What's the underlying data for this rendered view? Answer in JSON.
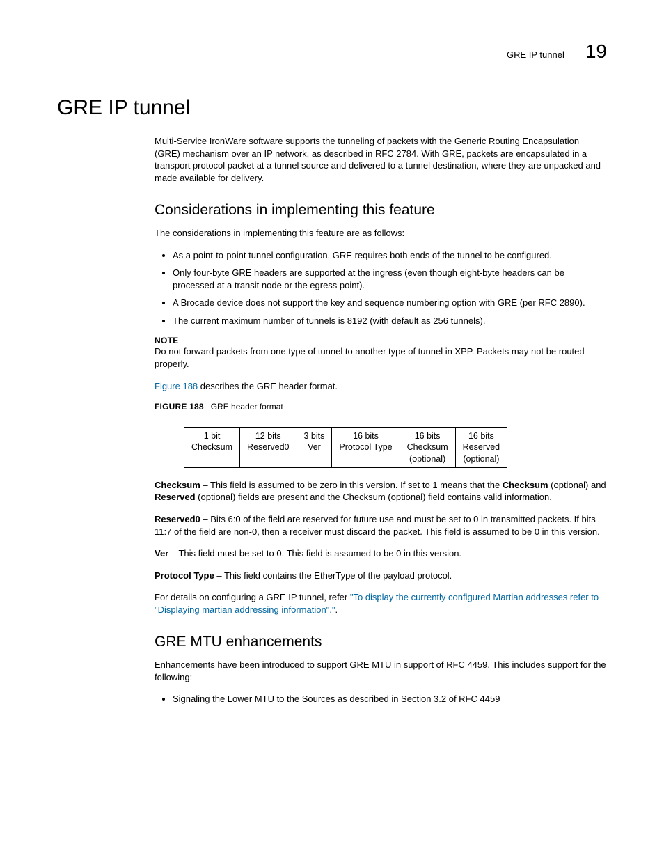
{
  "header": {
    "running_title": "GRE IP tunnel",
    "chapter_number": "19"
  },
  "title": "GRE IP tunnel",
  "intro": "Multi-Service IronWare software supports the tunneling of packets with the Generic Routing Encapsulation (GRE) mechanism over an IP network, as described in RFC 2784. With GRE, packets are encapsulated in a transport protocol packet at a tunnel source and delivered to a tunnel destination, where they are unpacked and made available for delivery.",
  "considerations": {
    "heading": "Considerations in implementing this feature",
    "lead": "The considerations in implementing this feature are as follows:",
    "bullets": [
      "As a point-to-point tunnel configuration, GRE requires both ends of the tunnel to be configured.",
      "Only four-byte GRE headers are supported at the ingress (even though eight-byte headers can be processed at a transit node or the egress point).",
      "A Brocade device does not support the key and sequence numbering option with GRE (per RFC 2890).",
      "The current maximum number of tunnels is 8192 (with default as 256 tunnels)."
    ]
  },
  "note": {
    "label": "NOTE",
    "text": "Do not forward packets from one type of tunnel to another type of tunnel in XPP. Packets may not be routed properly."
  },
  "figref": {
    "link": "Figure 188",
    "after": " describes the GRE header format."
  },
  "figure": {
    "label": "FIGURE 188",
    "title": "GRE header format",
    "columns": [
      {
        "bits": "1 bit",
        "name": "Checksum"
      },
      {
        "bits": "12 bits",
        "name": "Reserved0"
      },
      {
        "bits": "3 bits",
        "name": "Ver"
      },
      {
        "bits": "16 bits",
        "name": "Protocol Type"
      },
      {
        "bits": "16 bits",
        "name": "Checksum",
        "sub": "(optional)"
      },
      {
        "bits": "16 bits",
        "name": "Reserved",
        "sub": "(optional)"
      }
    ]
  },
  "fields": {
    "checksum_label": "Checksum",
    "checksum_text_a": " – This field is assumed to be zero in this version. If set to 1 means that the ",
    "checksum_bold2": "Checksum",
    "checksum_text_b": " (optional) and ",
    "reserved_bold": "Reserved",
    "checksum_text_c": " (optional) fields are present and the Checksum (optional) field contains valid information.",
    "reserved0_label": "Reserved0",
    "reserved0_text": " – Bits 6:0 of the field are reserved for future use and must be set to 0 in transmitted packets. If bits 11:7 of the field are non-0, then a receiver must discard the packet. This field is assumed to be 0 in this version.",
    "ver_label": "Ver",
    "ver_text": " – This field must be set to 0. This field is assumed to be 0 in this version.",
    "proto_label": "Protocol Type",
    "proto_text": " – This field contains the EtherType of the payload protocol.",
    "detail_lead": "For details on configuring a GRE IP tunnel, refer ",
    "detail_link": "\"To display the currently configured Martian addresses refer to \"Displaying martian addressing information\".\"",
    "detail_tail": "."
  },
  "mtu": {
    "heading": "GRE MTU enhancements",
    "lead": "Enhancements have been introduced to support GRE MTU in support of RFC 4459. This includes support for the following:",
    "bullets": [
      "Signaling the Lower MTU to the Sources as described in Section 3.2 of RFC 4459"
    ]
  }
}
